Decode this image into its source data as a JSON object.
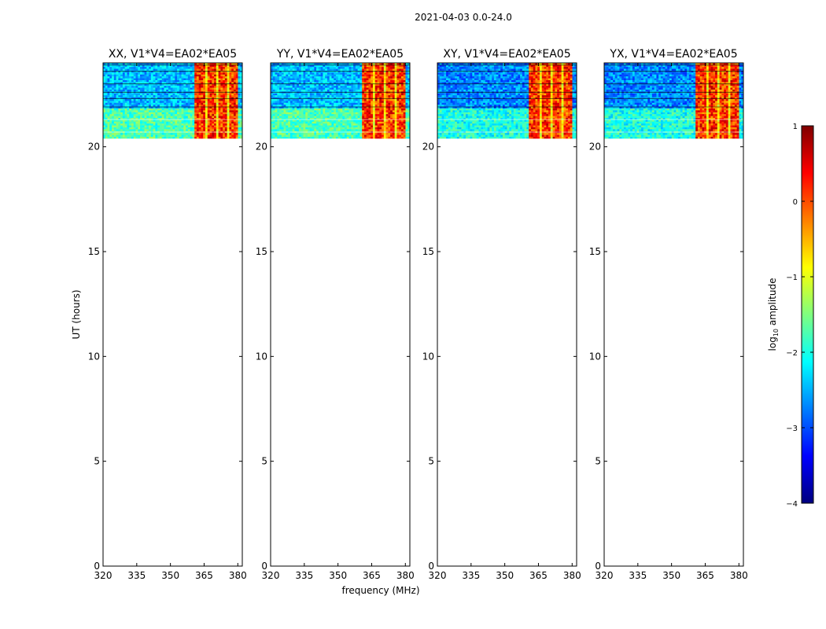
{
  "chart_data": {
    "type": "heatmap",
    "suptitle": "2021-04-03 0.0-24.0",
    "xlabel": "frequency (MHz)",
    "ylabel": "UT (hours)",
    "xlim": [
      320,
      382
    ],
    "ylim": [
      0,
      24
    ],
    "xticks": [
      "320",
      "335",
      "350",
      "365",
      "380"
    ],
    "yticks": [
      "0",
      "5",
      "10",
      "15",
      "20"
    ],
    "data_time_range_hours": [
      20.4,
      24.0
    ],
    "rfi_band_mhz": [
      360.5,
      380.5
    ],
    "panels": [
      {
        "title": "XX, V1*V4=EA02*EA05",
        "polarization": "XX"
      },
      {
        "title": "YY, V1*V4=EA02*EA05",
        "polarization": "YY"
      },
      {
        "title": "XY, V1*V4=EA02*EA05",
        "polarization": "XY"
      },
      {
        "title": "YX, V1*V4=EA02*EA05",
        "polarization": "YX"
      }
    ],
    "colorbar": {
      "label_prefix": "log",
      "label_sub": "10",
      "label_suffix": " amplitude",
      "range": [
        -4,
        1
      ],
      "ticks": [
        "1",
        "0",
        "−1",
        "−2",
        "−3",
        "−4"
      ],
      "colormap": [
        "#00007f",
        "#0000ff",
        "#007fff",
        "#00ffff",
        "#7fff7f",
        "#ffff00",
        "#ff7f00",
        "#ff0000",
        "#7f0000"
      ]
    }
  }
}
